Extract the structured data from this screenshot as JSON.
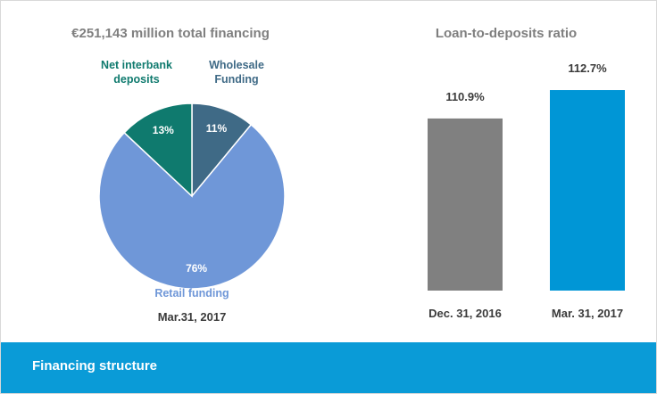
{
  "chart_data": [
    {
      "type": "pie",
      "title": "€251,143 million total financing",
      "categories": [
        "Wholesale Funding",
        "Retail funding",
        "Net interbank deposits"
      ],
      "values": [
        11,
        76,
        13
      ],
      "value_labels": [
        "11%",
        "76%",
        "13%"
      ],
      "colors": [
        "#3f6a86",
        "#6f97d8",
        "#0f7a6e"
      ],
      "xlabel": "Mar.31, 2017"
    },
    {
      "type": "bar",
      "title": "Loan-to-deposits ratio",
      "categories": [
        "Dec. 31, 2016",
        "Mar. 31, 2017"
      ],
      "values": [
        110.9,
        112.7
      ],
      "value_labels": [
        "110.9%",
        "112.7%"
      ],
      "colors": [
        "#808080",
        "#0096d6"
      ],
      "ylim": [
        100,
        114
      ]
    }
  ],
  "footer": "Financing structure"
}
